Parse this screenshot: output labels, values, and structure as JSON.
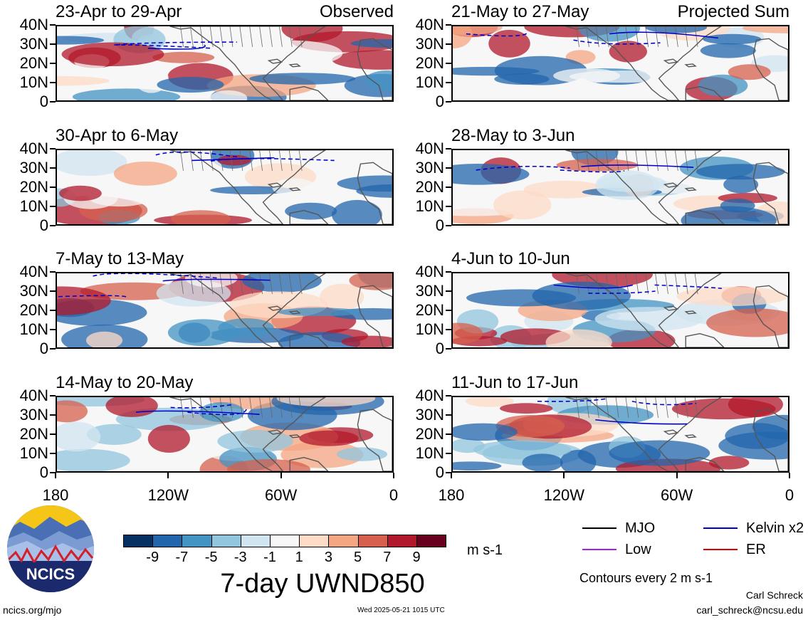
{
  "columns": {
    "left_label": "Observed",
    "right_label": "Projected Sum"
  },
  "panels": [
    {
      "title": "23-Apr to 29-Apr"
    },
    {
      "title": "30-Apr to 6-May"
    },
    {
      "title": "7-May to 13-May"
    },
    {
      "title": "14-May to 20-May"
    },
    {
      "title": "21-May to 27-May"
    },
    {
      "title": "28-May to 3-Jun"
    },
    {
      "title": "4-Jun to 10-Jun"
    },
    {
      "title": "11-Jun to 17-Jun"
    }
  ],
  "lat_labels": [
    "40N",
    "30N",
    "20N",
    "10N",
    "0"
  ],
  "lon_labels": [
    "180",
    "120W",
    "60W",
    "0"
  ],
  "colorbar": {
    "colors": [
      "#053061",
      "#2166ac",
      "#4393c3",
      "#92c5de",
      "#d1e5f0",
      "#f7f7f7",
      "#fddbc7",
      "#f4a582",
      "#d6604d",
      "#b2182b",
      "#67001f"
    ],
    "labels": [
      "-9",
      "-7",
      "-5",
      "-3",
      "-1",
      "1",
      "3",
      "5",
      "7",
      "9"
    ],
    "units": "m s-1",
    "title": "7-day UWND850"
  },
  "legend": {
    "items": [
      {
        "label": "MJO",
        "color": "#000000"
      },
      {
        "label": "Kelvin x2",
        "color": "#0000cc"
      },
      {
        "label": "Low",
        "color": "#a020f0"
      },
      {
        "label": "ER",
        "color": "#dd0000"
      }
    ],
    "contour_note": "Contours every 2 m s-1"
  },
  "logo": {
    "text": "NCICS"
  },
  "footer": {
    "url": "ncics.org/mjo",
    "timestamp": "Wed 2025-05-21 1015 UTC",
    "author": "Carl Schreck",
    "email": "carl_schreck@ncsu.edu"
  }
}
